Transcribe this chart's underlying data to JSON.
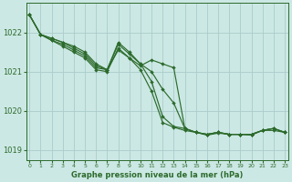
{
  "background_color": "#cce8e4",
  "grid_color": "#aacccc",
  "line_color": "#2d6b2d",
  "text_color": "#2d6b2d",
  "xlabel": "Graphe pression niveau de la mer (hPa)",
  "ylim": [
    1018.75,
    1022.75
  ],
  "xlim": [
    -0.3,
    23.3
  ],
  "yticks": [
    1019,
    1020,
    1021,
    1022
  ],
  "xticks": [
    0,
    1,
    2,
    3,
    4,
    5,
    6,
    7,
    8,
    9,
    10,
    11,
    12,
    13,
    14,
    15,
    16,
    17,
    18,
    19,
    20,
    21,
    22,
    23
  ],
  "lines": [
    [
      1022.45,
      1021.95,
      1021.85,
      1021.75,
      1021.65,
      1021.5,
      1021.2,
      1021.05,
      1021.55,
      1021.35,
      1021.15,
      1021.3,
      1021.2,
      1021.1,
      1019.55,
      1019.45,
      1019.4,
      1019.45,
      1019.4,
      1019.4,
      1019.4,
      1019.5,
      1019.55,
      1019.45
    ],
    [
      1022.45,
      1021.95,
      1021.85,
      1021.75,
      1021.6,
      1021.45,
      1021.15,
      1021.05,
      1021.7,
      1021.45,
      1021.2,
      1021.0,
      1020.55,
      1020.2,
      1019.55,
      1019.45,
      1019.4,
      1019.45,
      1019.4,
      1019.4,
      1019.4,
      1019.5,
      1019.55,
      1019.45
    ],
    [
      1022.45,
      1021.95,
      1021.8,
      1021.7,
      1021.55,
      1021.4,
      1021.1,
      1021.05,
      1021.75,
      1021.5,
      1021.2,
      1020.75,
      1019.85,
      1019.6,
      1019.55,
      1019.45,
      1019.4,
      1019.45,
      1019.4,
      1019.4,
      1019.4,
      1019.5,
      1019.55,
      1019.45
    ],
    [
      1022.45,
      1021.95,
      1021.8,
      1021.65,
      1021.5,
      1021.35,
      1021.05,
      1021.0,
      1021.6,
      1021.35,
      1021.05,
      1020.5,
      1019.7,
      1019.58,
      1019.5,
      1019.45,
      1019.38,
      1019.43,
      1019.4,
      1019.4,
      1019.38,
      1019.5,
      1019.5,
      1019.45
    ]
  ],
  "figsize": [
    3.2,
    2.0
  ],
  "dpi": 100
}
